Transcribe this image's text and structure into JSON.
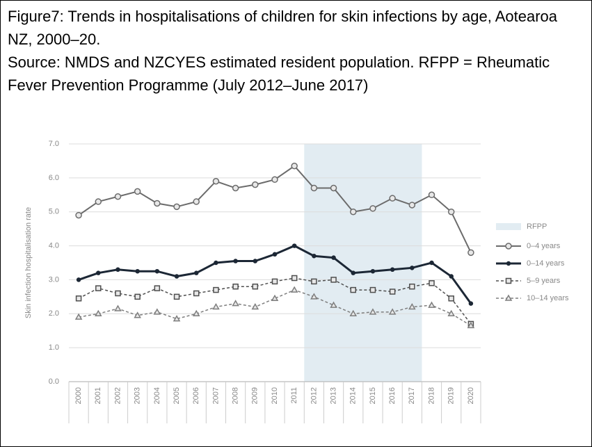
{
  "chart_data": {
    "type": "line",
    "title": "Figure7: Trends in hospitalisations of children for skin infections by age, Aotearoa NZ, 2000–20.",
    "subtitle": "Source: NMDS and NZCYES estimated resident population. RFPP = Rheumatic Fever Prevention Programme (July 2012–June 2017)",
    "y_label": "Skin infection hospitalisation rate",
    "categories": [
      "2000",
      "2001",
      "2002",
      "2003",
      "2004",
      "2005",
      "2006",
      "2007",
      "2008",
      "2009",
      "2010",
      "2011",
      "2012",
      "2013",
      "2014",
      "2015",
      "2016",
      "2017",
      "2018",
      "2019",
      "2020"
    ],
    "shaded_region": {
      "name": "RFPP",
      "start": "2012",
      "end": "2017",
      "color": "#e2ecf2"
    },
    "series": [
      {
        "name": "0–4 years",
        "color": "#6b6b6b",
        "marker": "circle",
        "dash": "solid",
        "width": 2,
        "values": [
          4.9,
          5.3,
          5.45,
          5.6,
          5.25,
          5.15,
          5.3,
          5.9,
          5.7,
          5.8,
          5.95,
          6.35,
          5.7,
          5.7,
          5.0,
          5.1,
          5.4,
          5.2,
          5.5,
          5.0,
          3.8
        ]
      },
      {
        "name": "0–14 years",
        "color": "#1c2735",
        "marker": "dot",
        "dash": "solid",
        "width": 3,
        "values": [
          3.0,
          3.2,
          3.3,
          3.25,
          3.25,
          3.1,
          3.2,
          3.5,
          3.55,
          3.55,
          3.75,
          4.0,
          3.7,
          3.65,
          3.2,
          3.25,
          3.3,
          3.35,
          3.5,
          3.1,
          2.3
        ]
      },
      {
        "name": "5–9 years",
        "color": "#4e4e4e",
        "marker": "square",
        "dash": "dashed",
        "width": 1.5,
        "values": [
          2.45,
          2.75,
          2.6,
          2.5,
          2.75,
          2.5,
          2.6,
          2.7,
          2.8,
          2.8,
          2.95,
          3.05,
          2.95,
          3.0,
          2.7,
          2.7,
          2.65,
          2.8,
          2.9,
          2.45,
          1.7
        ]
      },
      {
        "name": "10–14 years",
        "color": "#7e7e7e",
        "marker": "triangle",
        "dash": "dashed",
        "width": 1.5,
        "values": [
          1.9,
          2.0,
          2.15,
          1.95,
          2.05,
          1.85,
          2.0,
          2.2,
          2.3,
          2.2,
          2.45,
          2.7,
          2.5,
          2.25,
          2.0,
          2.05,
          2.05,
          2.2,
          2.25,
          2.0,
          1.65
        ]
      }
    ],
    "ylim": [
      0,
      7
    ],
    "yticks": [
      {
        "value": 0,
        "label": "0.0"
      },
      {
        "value": 1,
        "label": "1.0"
      },
      {
        "value": 2,
        "label": "2.0"
      },
      {
        "value": 3,
        "label": "3.0"
      },
      {
        "value": 4,
        "label": "4.0"
      },
      {
        "value": 5,
        "label": "5.0"
      },
      {
        "value": 6,
        "label": "6.0"
      },
      {
        "value": 7,
        "label": "7.0"
      }
    ],
    "grid": true,
    "legend": "right"
  }
}
